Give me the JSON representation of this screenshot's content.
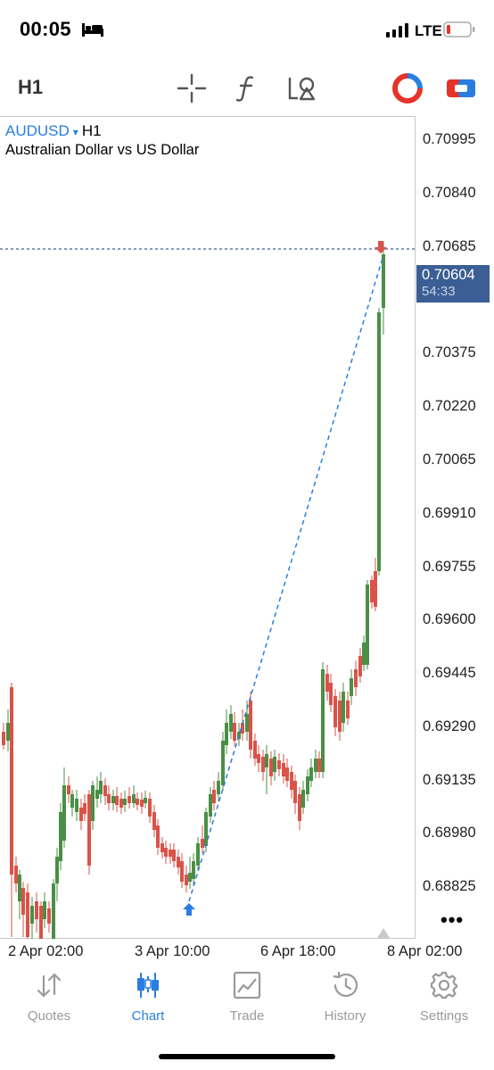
{
  "status_bar": {
    "time": "00:05",
    "network": "LTE",
    "battery_color": "#e5332a"
  },
  "toolbar": {
    "timeframe": "H1",
    "icons": [
      "crosshair-icon",
      "indicator-f-icon",
      "objects-icon",
      "one-click-trading-icon",
      "account-icon"
    ]
  },
  "chart": {
    "symbol": "AUDUSD",
    "symbol_caret": "▾",
    "timeframe": "H1",
    "description": "Australian Dollar vs US Dollar",
    "current_price": "0.70604",
    "countdown": "54:33",
    "more": "•••",
    "price_labels": [
      "0.70995",
      "0.70840",
      "0.70685",
      "0.70375",
      "0.70220",
      "0.70065",
      "0.69910",
      "0.69755",
      "0.69600",
      "0.69445",
      "0.69290",
      "0.69135",
      "0.68980",
      "0.68825"
    ],
    "time_labels": [
      "2 Apr 02:00",
      "3 Apr 10:00",
      "6 Apr 18:00",
      "8 Apr 02:00"
    ],
    "colors": {
      "bull": "#4a8f45",
      "bear": "#d9534a",
      "line": "#2a7de1",
      "tag": "#3b5f94"
    }
  },
  "tabs": [
    {
      "label": "Quotes",
      "icon": "quotes-arrows-icon",
      "active": false
    },
    {
      "label": "Chart",
      "icon": "candles-icon",
      "active": true
    },
    {
      "label": "Trade",
      "icon": "trade-chart-icon",
      "active": false
    },
    {
      "label": "History",
      "icon": "history-clock-icon",
      "active": false
    },
    {
      "label": "Settings",
      "icon": "gear-icon",
      "active": false
    }
  ]
}
